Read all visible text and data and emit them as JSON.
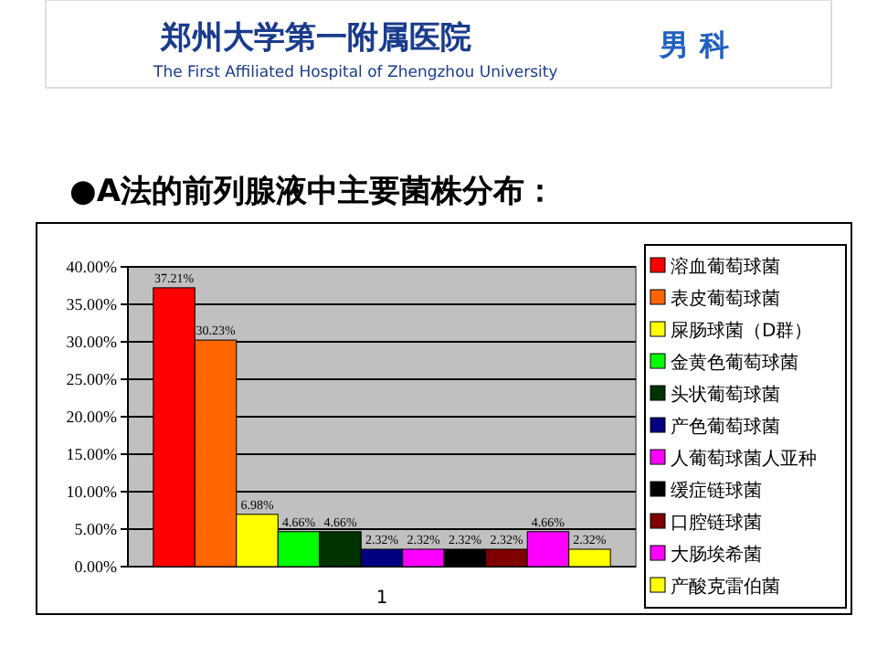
{
  "chart_data": {
    "type": "bar",
    "title": "●A法的前列腺液中主要菌株分布：",
    "annotations": [
      "郑州大学第一附属医院",
      "The First Affiliated Hospital of Zhengzhou University",
      "男 科"
    ],
    "categories": [
      "1"
    ],
    "series": [
      {
        "name": "溶血葡萄球菌",
        "color": "#ff0000",
        "values": [
          37.21
        ],
        "value_labels": [
          "37.21%"
        ]
      },
      {
        "name": "表皮葡萄球菌",
        "color": "#ff6600",
        "values": [
          30.23
        ],
        "value_labels": [
          "30.23%"
        ]
      },
      {
        "name": "屎肠球菌（D群）",
        "color": "#ffff00",
        "values": [
          6.98
        ],
        "value_labels": [
          "6.98%"
        ]
      },
      {
        "name": "金黄色葡萄球菌",
        "color": "#00ff00",
        "values": [
          4.66
        ],
        "value_labels": [
          "4.66%"
        ]
      },
      {
        "name": "头状葡萄球菌",
        "color": "#003300",
        "values": [
          4.66
        ],
        "value_labels": [
          "4.66%"
        ]
      },
      {
        "name": "产色葡萄球菌",
        "color": "#000080",
        "values": [
          2.32
        ],
        "value_labels": [
          "2.32%"
        ]
      },
      {
        "name": "人葡萄球菌人亚种",
        "color": "#ff00ff",
        "values": [
          2.32
        ],
        "value_labels": [
          "2.32%"
        ]
      },
      {
        "name": "缓症链球菌",
        "color": "#000000",
        "values": [
          2.32
        ],
        "value_labels": [
          "2.32%"
        ]
      },
      {
        "name": "口腔链球菌",
        "color": "#800000",
        "values": [
          2.32
        ],
        "value_labels": [
          "2.32%"
        ]
      },
      {
        "name": "大肠埃希菌",
        "color": "#ff00ff",
        "values": [
          4.66
        ],
        "value_labels": [
          "4.66%"
        ]
      },
      {
        "name": "产酸克雷伯菌",
        "color": "#ffff00",
        "values": [
          2.32
        ],
        "value_labels": [
          "2.32%"
        ]
      }
    ],
    "ylim": [
      0,
      40
    ],
    "yticks": [
      {
        "value": 0,
        "label": "0.00%"
      },
      {
        "value": 5,
        "label": "5.00%"
      },
      {
        "value": 10,
        "label": "10.00%"
      },
      {
        "value": 15,
        "label": "15.00%"
      },
      {
        "value": 20,
        "label": "20.00%"
      },
      {
        "value": 25,
        "label": "25.00%"
      },
      {
        "value": 30,
        "label": "30.00%"
      },
      {
        "value": 35,
        "label": "35.00%"
      },
      {
        "value": 40,
        "label": "40.00%"
      }
    ],
    "grid": "y",
    "legend": "right"
  }
}
